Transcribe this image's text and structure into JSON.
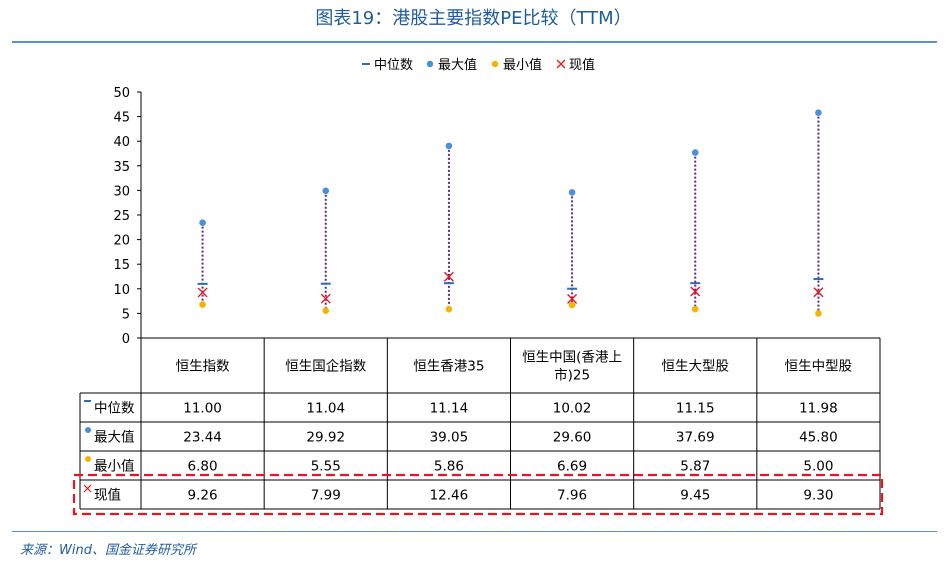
{
  "title": "图表19：港股主要指数PE比较（TTM）",
  "source": "来源：Wind、国金证券研究所",
  "legend": [
    "中位数",
    "最大值",
    "最小值",
    "现值"
  ],
  "colors": {
    "median": "#2e6db4",
    "max": "#4a90d9",
    "min": "#f5b400",
    "current": "#e8141f",
    "range_line": "#5b2a86",
    "title": "#1f5c9e",
    "highlight_box": "#e8141f"
  },
  "chart_data": {
    "type": "scatter",
    "categories": [
      "恒生指数",
      "恒生国企指数",
      "恒生香港35",
      "恒生中国(香港上市)25",
      "恒生大型股",
      "恒生中型股"
    ],
    "category_lines": [
      [
        "恒生指数"
      ],
      [
        "恒生国企指数"
      ],
      [
        "恒生香港35"
      ],
      [
        "恒生中国(香港上",
        "市)25"
      ],
      [
        "恒生大型股"
      ],
      [
        "恒生中型股"
      ]
    ],
    "series": [
      {
        "name": "中位数",
        "values": [
          11.0,
          11.04,
          11.14,
          10.02,
          11.15,
          11.98
        ]
      },
      {
        "name": "最大值",
        "values": [
          23.44,
          29.92,
          39.05,
          29.6,
          37.69,
          45.8
        ]
      },
      {
        "name": "最小值",
        "values": [
          6.8,
          5.55,
          5.86,
          6.69,
          5.87,
          5.0
        ]
      },
      {
        "name": "现值",
        "values": [
          9.26,
          7.99,
          12.46,
          7.96,
          9.45,
          9.3
        ]
      }
    ],
    "table_values": [
      [
        "11.00",
        "11.04",
        "11.14",
        "10.02",
        "11.15",
        "11.98"
      ],
      [
        "23.44",
        "29.92",
        "39.05",
        "29.60",
        "37.69",
        "45.80"
      ],
      [
        "6.80",
        "5.55",
        "5.86",
        "6.69",
        "5.87",
        "5.00"
      ],
      [
        "9.26",
        "7.99",
        "12.46",
        "7.96",
        "9.45",
        "9.30"
      ]
    ],
    "ylim": [
      0,
      50
    ],
    "yticks": [
      "0",
      "5",
      "10",
      "15",
      "20",
      "25",
      "30",
      "35",
      "40",
      "45",
      "50"
    ],
    "legend_position": "top-center",
    "grid": false,
    "highlighted_row": "现值"
  }
}
